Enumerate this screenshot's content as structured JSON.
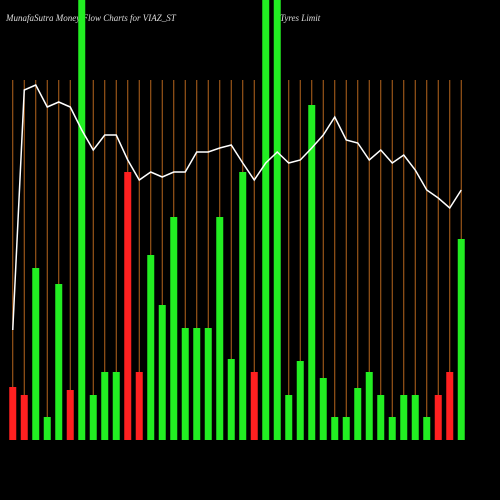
{
  "chart_data": {
    "type": "bar",
    "title": "MunafaSutra  Money  Flow  Charts for VIAZ_ST",
    "title_suffix": "Tyres Limit",
    "categories": [
      null,
      null,
      null,
      null,
      null,
      null,
      null,
      null,
      null,
      null,
      null,
      null,
      null,
      null,
      null,
      null,
      null,
      null,
      null,
      null,
      null,
      null,
      null,
      null,
      null,
      null,
      null,
      null,
      null,
      null,
      null,
      null,
      null,
      null,
      null,
      null,
      null,
      null,
      null,
      null
    ],
    "colors": [
      "#ff2020",
      "#ff2020",
      "#22ee22",
      "#22ee22",
      "#22ee22",
      "#ff2020",
      "#22ee22",
      "#22ee22",
      "#22ee22",
      "#22ee22",
      "#ff2020",
      "#ff2020",
      "#22ee22",
      "#22ee22",
      "#22ee22",
      "#22ee22",
      "#22ee22",
      "#22ee22",
      "#22ee22",
      "#22ee22",
      "#22ee22",
      "#ff2020",
      "#22ee22",
      "#22ee22",
      "#22ee22",
      "#22ee22",
      "#22ee22",
      "#22ee22",
      "#22ee22",
      "#22ee22",
      "#22ee22",
      "#22ee22",
      "#22ee22",
      "#22ee22",
      "#22ee22",
      "#22ee22",
      "#22ee22",
      "#ff2020",
      "#ff2020",
      "#22ee22"
    ],
    "values": [
      53,
      45,
      172,
      23,
      156,
      50,
      460,
      45,
      68,
      68,
      268,
      68,
      185,
      135,
      223,
      112,
      112,
      112,
      223,
      81,
      268,
      68,
      460,
      460,
      45,
      79,
      335,
      62,
      23,
      23,
      52,
      68,
      45,
      23,
      45,
      45,
      23,
      45,
      68,
      201
    ],
    "line_color": "#ffffff",
    "line_values": [
      110,
      350,
      355,
      333,
      338,
      333,
      310,
      290,
      305,
      305,
      280,
      260,
      268,
      263,
      268,
      268,
      288,
      288,
      292,
      295,
      277,
      260,
      277,
      288,
      277,
      280,
      292,
      305,
      323,
      300,
      297,
      280,
      290,
      277,
      285,
      270,
      250,
      242,
      232,
      250
    ],
    "ylim": [
      0,
      440
    ],
    "grid_color": "#b5651d"
  }
}
